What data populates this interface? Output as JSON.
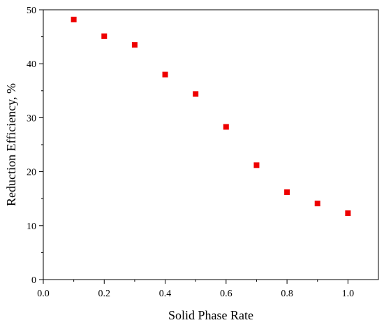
{
  "chart_data": {
    "type": "scatter",
    "title": "",
    "xlabel": "Solid Phase Rate",
    "ylabel": "Reduction Efficiency, %",
    "xlim": [
      0.0,
      1.1
    ],
    "ylim": [
      0,
      50
    ],
    "xticks": [
      0.0,
      0.2,
      0.4,
      0.6,
      0.8,
      1.0
    ],
    "xtick_labels": [
      "0.0",
      "0.2",
      "0.4",
      "0.6",
      "0.8",
      "1.0"
    ],
    "yticks": [
      0,
      10,
      20,
      30,
      40,
      50
    ],
    "ytick_labels": [
      "0",
      "10",
      "20",
      "30",
      "40",
      "50"
    ],
    "grid": false,
    "legend": "none",
    "marker": "square",
    "marker_color": "#ee0000",
    "series": [
      {
        "x": [
          0.1,
          0.2,
          0.3,
          0.4,
          0.5,
          0.6,
          0.7,
          0.8,
          0.9,
          1.0
        ],
        "y": [
          48.2,
          45.1,
          43.5,
          38.0,
          34.4,
          28.3,
          21.2,
          16.2,
          14.1,
          12.3
        ]
      }
    ]
  }
}
